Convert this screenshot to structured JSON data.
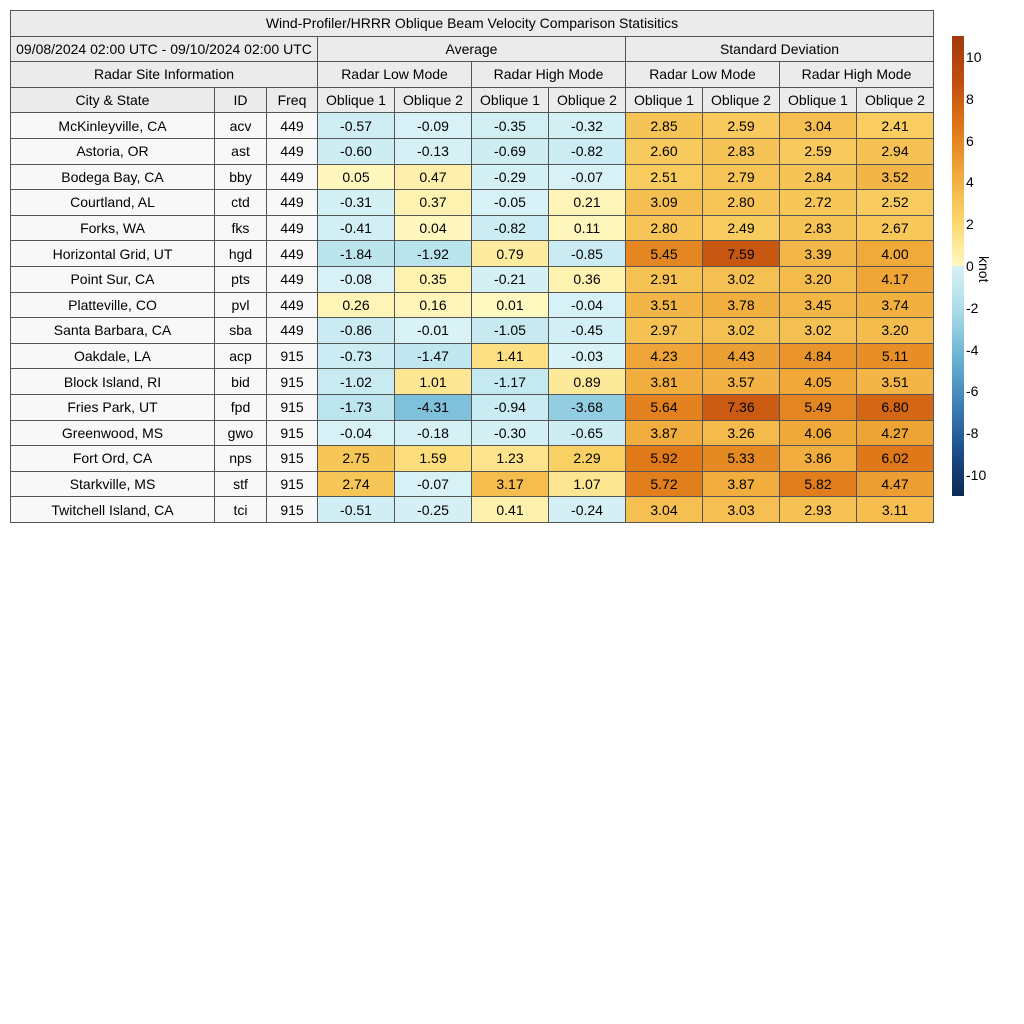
{
  "chart_data": {
    "type": "table",
    "title": "Wind-Profiler/HRRR Oblique Beam Velocity Comparison Statisitics",
    "date_range": "09/08/2024 02:00 UTC - 09/10/2024 02:00 UTC",
    "group_headers": {
      "average": "Average",
      "std": "Standard Deviation"
    },
    "site_header": "Radar Site Information",
    "mode_headers": [
      "Radar Low Mode",
      "Radar High Mode",
      "Radar Low Mode",
      "Radar High Mode"
    ],
    "columns": [
      "City & State",
      "ID",
      "Freq",
      "Oblique 1",
      "Oblique 2",
      "Oblique 1",
      "Oblique 2",
      "Oblique 1",
      "Oblique 2",
      "Oblique 1",
      "Oblique 2"
    ],
    "rows": [
      {
        "city": "McKinleyville, CA",
        "id": "acv",
        "freq": "449",
        "avg": [
          "-0.57",
          "-0.09",
          "-0.35",
          "-0.32"
        ],
        "std": [
          "2.85",
          "2.59",
          "3.04",
          "2.41"
        ]
      },
      {
        "city": "Astoria, OR",
        "id": "ast",
        "freq": "449",
        "avg": [
          "-0.60",
          "-0.13",
          "-0.69",
          "-0.82"
        ],
        "std": [
          "2.60",
          "2.83",
          "2.59",
          "2.94"
        ]
      },
      {
        "city": "Bodega Bay, CA",
        "id": "bby",
        "freq": "449",
        "avg": [
          "0.05",
          "0.47",
          "-0.29",
          "-0.07"
        ],
        "std": [
          "2.51",
          "2.79",
          "2.84",
          "3.52"
        ]
      },
      {
        "city": "Courtland, AL",
        "id": "ctd",
        "freq": "449",
        "avg": [
          "-0.31",
          "0.37",
          "-0.05",
          "0.21"
        ],
        "std": [
          "3.09",
          "2.80",
          "2.72",
          "2.52"
        ]
      },
      {
        "city": "Forks, WA",
        "id": "fks",
        "freq": "449",
        "avg": [
          "-0.41",
          "0.04",
          "-0.82",
          "0.11"
        ],
        "std": [
          "2.80",
          "2.49",
          "2.83",
          "2.67"
        ]
      },
      {
        "city": "Horizontal Grid, UT",
        "id": "hgd",
        "freq": "449",
        "avg": [
          "-1.84",
          "-1.92",
          "0.79",
          "-0.85"
        ],
        "std": [
          "5.45",
          "7.59",
          "3.39",
          "4.00"
        ]
      },
      {
        "city": "Point Sur, CA",
        "id": "pts",
        "freq": "449",
        "avg": [
          "-0.08",
          "0.35",
          "-0.21",
          "0.36"
        ],
        "std": [
          "2.91",
          "3.02",
          "3.20",
          "4.17"
        ]
      },
      {
        "city": "Platteville, CO",
        "id": "pvl",
        "freq": "449",
        "avg": [
          "0.26",
          "0.16",
          "0.01",
          "-0.04"
        ],
        "std": [
          "3.51",
          "3.78",
          "3.45",
          "3.74"
        ]
      },
      {
        "city": "Santa Barbara, CA",
        "id": "sba",
        "freq": "449",
        "avg": [
          "-0.86",
          "-0.01",
          "-1.05",
          "-0.45"
        ],
        "std": [
          "2.97",
          "3.02",
          "3.02",
          "3.20"
        ]
      },
      {
        "city": "Oakdale, LA",
        "id": "acp",
        "freq": "915",
        "avg": [
          "-0.73",
          "-1.47",
          "1.41",
          "-0.03"
        ],
        "std": [
          "4.23",
          "4.43",
          "4.84",
          "5.11"
        ]
      },
      {
        "city": "Block Island, RI",
        "id": "bid",
        "freq": "915",
        "avg": [
          "-1.02",
          "1.01",
          "-1.17",
          "0.89"
        ],
        "std": [
          "3.81",
          "3.57",
          "4.05",
          "3.51"
        ]
      },
      {
        "city": "Fries Park, UT",
        "id": "fpd",
        "freq": "915",
        "avg": [
          "-1.73",
          "-4.31",
          "-0.94",
          "-3.68"
        ],
        "std": [
          "5.64",
          "7.36",
          "5.49",
          "6.80"
        ]
      },
      {
        "city": "Greenwood, MS",
        "id": "gwo",
        "freq": "915",
        "avg": [
          "-0.04",
          "-0.18",
          "-0.30",
          "-0.65"
        ],
        "std": [
          "3.87",
          "3.26",
          "4.06",
          "4.27"
        ]
      },
      {
        "city": "Fort Ord, CA",
        "id": "nps",
        "freq": "915",
        "avg": [
          "2.75",
          "1.59",
          "1.23",
          "2.29"
        ],
        "std": [
          "5.92",
          "5.33",
          "3.86",
          "6.02"
        ]
      },
      {
        "city": "Starkville, MS",
        "id": "stf",
        "freq": "915",
        "avg": [
          "2.74",
          "-0.07",
          "3.17",
          "1.07"
        ],
        "std": [
          "5.72",
          "3.87",
          "5.82",
          "4.47"
        ]
      },
      {
        "city": "Twitchell Island, CA",
        "id": "tci",
        "freq": "915",
        "avg": [
          "-0.51",
          "-0.25",
          "0.41",
          "-0.24"
        ],
        "std": [
          "3.04",
          "3.03",
          "2.93",
          "3.11"
        ]
      }
    ],
    "colorbar": {
      "label": "knot",
      "range": [
        -11,
        11
      ],
      "ticks": [
        "10",
        "8",
        "6",
        "4",
        "2",
        "0",
        "-2",
        "-4",
        "-6",
        "-8",
        "-10"
      ]
    }
  }
}
